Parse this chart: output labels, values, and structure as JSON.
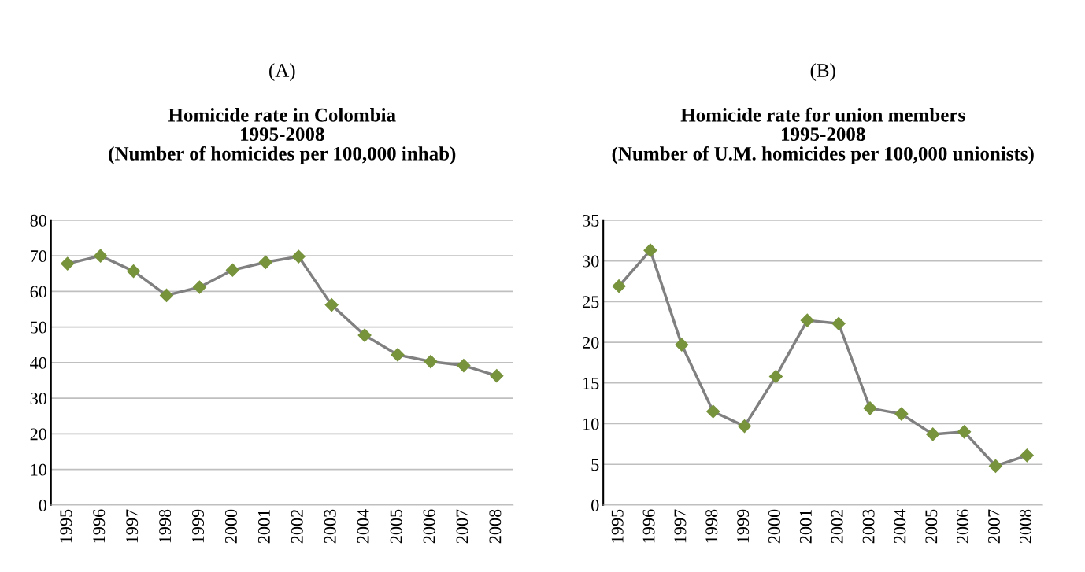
{
  "chart_data": [
    {
      "type": "line",
      "title": "Homicide rate in Colombia\n1995-2008\n(Number of homicides per 100,000 inhab)",
      "annotations": [
        "(A)"
      ],
      "categories": [
        "1995",
        "1996",
        "1997",
        "1998",
        "1999",
        "2000",
        "2001",
        "2002",
        "2003",
        "2004",
        "2005",
        "2006",
        "2007",
        "2008"
      ],
      "series": [
        {
          "color": "#808080",
          "values": [
            67.8,
            70,
            65.7,
            58.9,
            61.2,
            66,
            68.2,
            69.8,
            56.2,
            47.7,
            42.2,
            40.3,
            39.2,
            36.3
          ]
        }
      ],
      "ylim": [
        0,
        80
      ],
      "yticks": [
        0,
        10,
        20,
        30,
        40,
        50,
        60,
        70,
        80
      ],
      "grid": "y",
      "marker": "diamond",
      "line_style": "solid"
    },
    {
      "type": "line",
      "title": "Homicide rate for union members\n1995-2008\n(Number of U.M. homicides per 100,000 unionists)",
      "annotations": [
        "(B)"
      ],
      "categories": [
        "1995",
        "1996",
        "1997",
        "1998",
        "1999",
        "2000",
        "2001",
        "2002",
        "2003",
        "2004",
        "2005",
        "2006",
        "2007",
        "2008"
      ],
      "series": [
        {
          "color": "#808080",
          "values": [
            26.9,
            31.3,
            19.7,
            11.5,
            9.7,
            15.8,
            22.7,
            22.3,
            11.9,
            11.2,
            8.7,
            9.0,
            4.8,
            6.1
          ]
        }
      ],
      "ylim": [
        0,
        35
      ],
      "yticks": [
        0,
        5,
        10,
        15,
        20,
        25,
        30,
        35
      ],
      "grid": "y",
      "marker": "diamond",
      "line_style": "solid"
    }
  ]
}
